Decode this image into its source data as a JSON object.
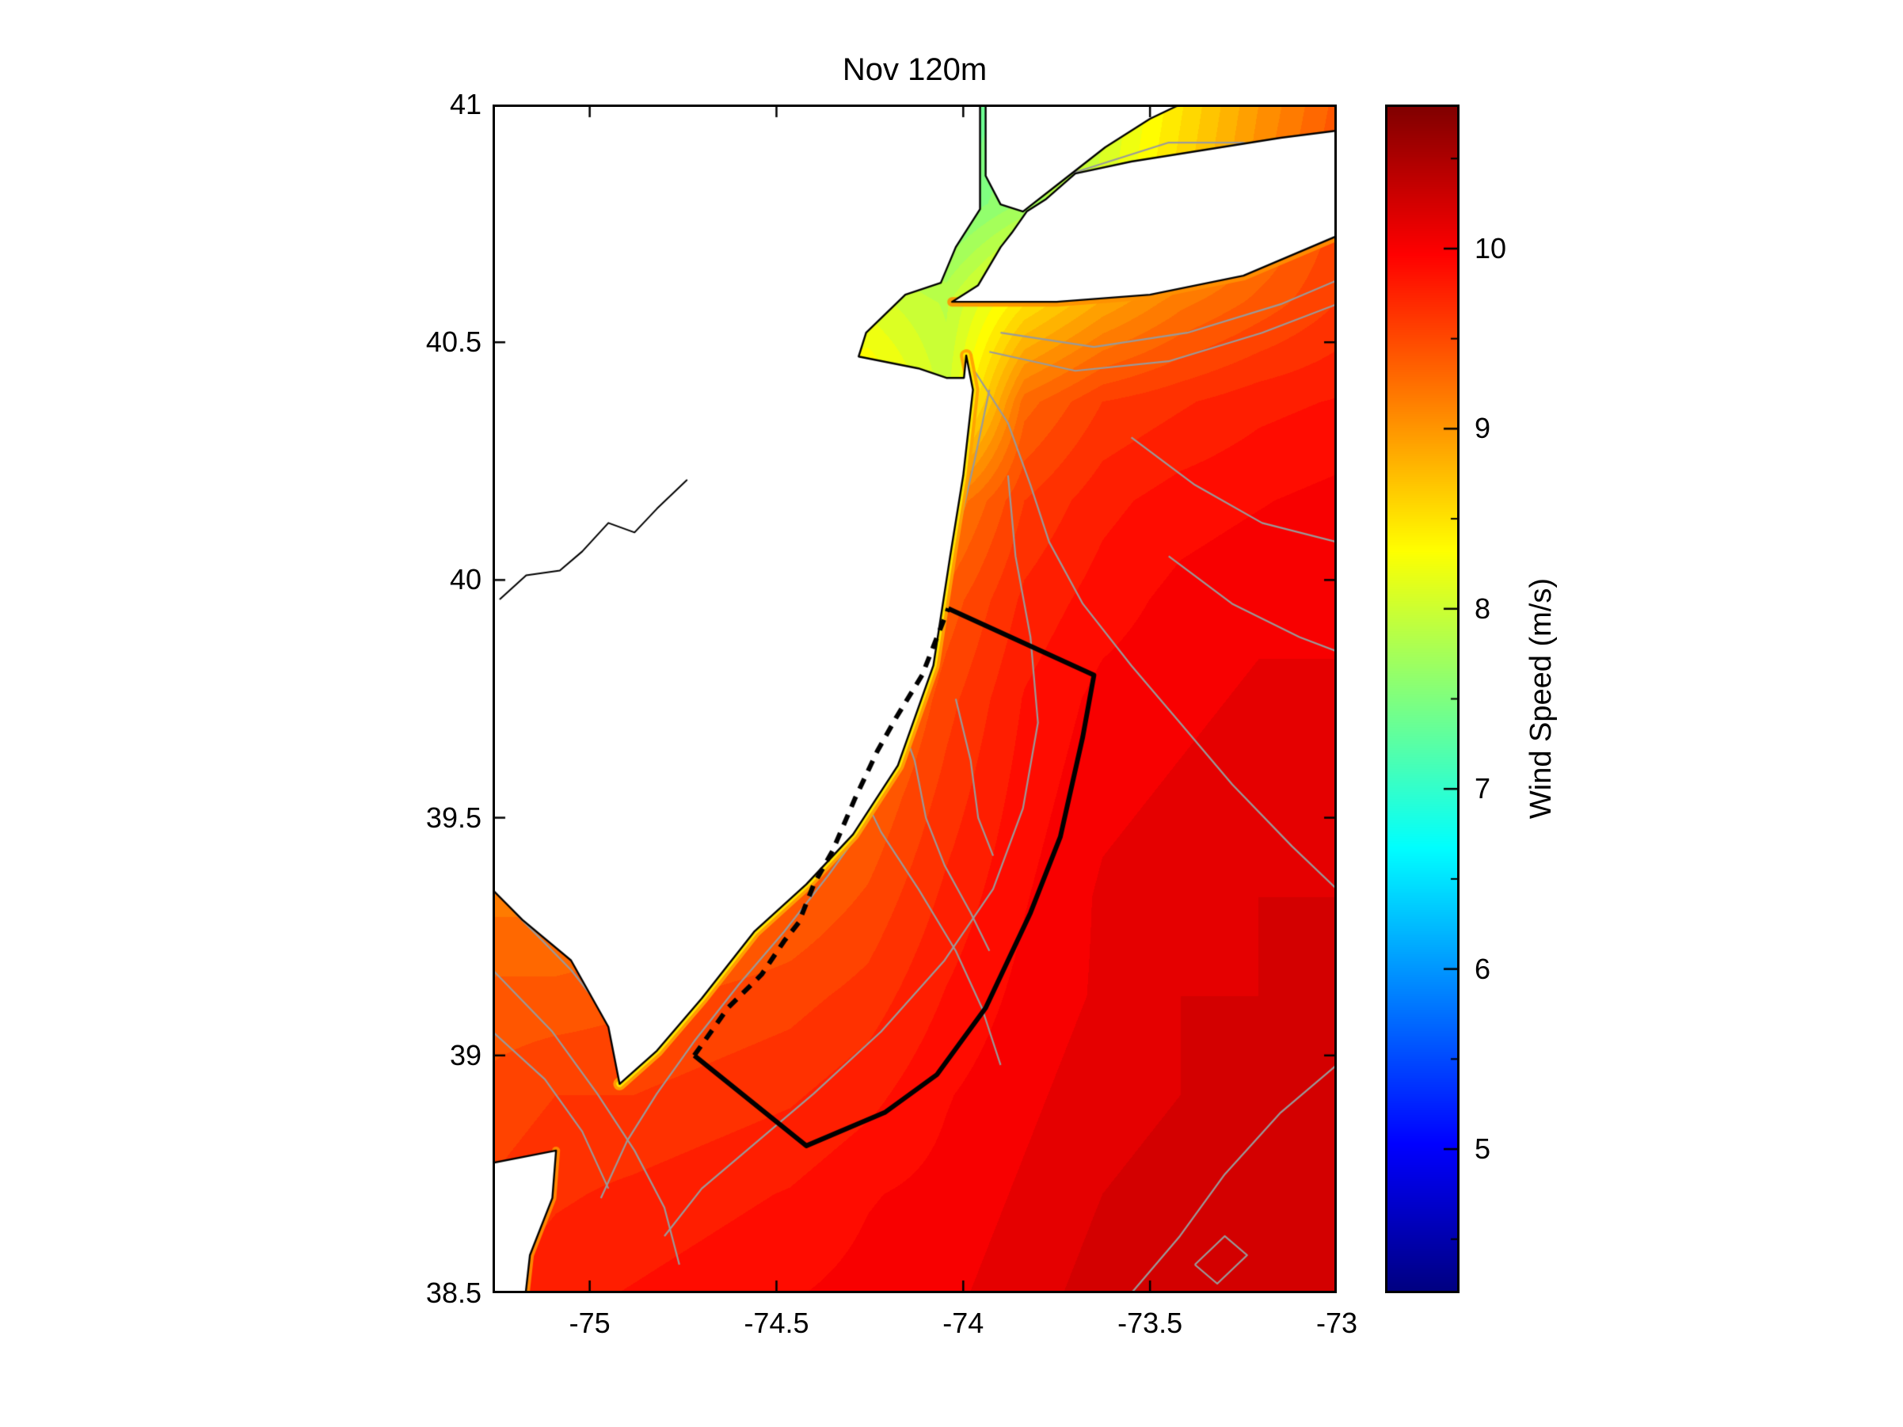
{
  "title": "Nov 120m",
  "colorbar": {
    "label": "Wind Speed (m/s)",
    "ticks": [
      5,
      6,
      7,
      8,
      9,
      10
    ],
    "tick_labels": [
      "5",
      "6",
      "7",
      "8",
      "9",
      "10"
    ],
    "vmin": 4.2,
    "vmax": 10.8
  },
  "axes": {
    "x_ticks": [
      -75,
      -74.5,
      -74,
      -73.5,
      -73
    ],
    "x_tick_labels": [
      "-75",
      "-74.5",
      "-74",
      "-73.5",
      "-73"
    ],
    "y_ticks": [
      38.5,
      39,
      39.5,
      40,
      40.5,
      41
    ],
    "y_tick_labels": [
      "38.5",
      "39",
      "39.5",
      "40",
      "40.5",
      "41"
    ],
    "xlim": [
      -75.26,
      -73.0
    ],
    "ylim": [
      38.5,
      41.0
    ]
  },
  "chart_data": {
    "type": "heatmap",
    "title": "Nov 120m",
    "variable": "Wind Speed (m/s)",
    "colormap": "jet",
    "value_range": [
      4.2,
      10.8
    ],
    "lon_range": [
      -75.26,
      -73.0
    ],
    "lat_range": [
      38.5,
      41.0
    ],
    "legend_position": "right-colorbar",
    "grid": {
      "lons": [
        -75.3,
        -75.09,
        -74.88,
        -74.67,
        -74.46,
        -74.25,
        -74.04,
        -73.83,
        -73.62,
        -73.41,
        -73.2,
        -73.0
      ],
      "lats": [
        41.0,
        40.79,
        40.58,
        40.375,
        40.17,
        39.96,
        39.75,
        39.54,
        39.33,
        39.125,
        38.92,
        38.71,
        38.5
      ],
      "values": [
        [
          7.6,
          7.6,
          7.6,
          7.6,
          7.6,
          7.6,
          7.2,
          7.6,
          8.0,
          8.5,
          9.0,
          9.4
        ],
        [
          7.8,
          7.8,
          7.8,
          7.8,
          7.8,
          7.8,
          7.4,
          7.7,
          8.1,
          8.6,
          9.1,
          9.5
        ],
        [
          8.0,
          8.0,
          8.0,
          8.0,
          8.1,
          8.1,
          7.9,
          8.5,
          8.9,
          9.2,
          9.4,
          9.6
        ],
        [
          8.2,
          8.2,
          8.2,
          8.2,
          8.3,
          8.5,
          8.0,
          9.3,
          9.6,
          9.7,
          9.8,
          9.85
        ],
        [
          8.4,
          8.4,
          8.4,
          8.4,
          8.5,
          8.7,
          9.1,
          9.6,
          9.8,
          9.9,
          9.95,
          10.0
        ],
        [
          8.6,
          8.6,
          8.6,
          8.6,
          8.75,
          9.0,
          9.4,
          9.75,
          9.9,
          10.0,
          10.05,
          10.05
        ],
        [
          8.8,
          8.8,
          8.8,
          8.85,
          8.95,
          9.15,
          9.55,
          9.85,
          10.0,
          10.05,
          10.1,
          10.1
        ],
        [
          9.0,
          9.0,
          9.0,
          9.05,
          9.15,
          9.35,
          9.65,
          9.9,
          10.05,
          10.1,
          10.15,
          10.15
        ],
        [
          9.2,
          9.2,
          9.2,
          9.25,
          9.35,
          9.5,
          9.75,
          9.95,
          10.1,
          10.15,
          10.2,
          10.2
        ],
        [
          9.4,
          9.4,
          9.45,
          9.5,
          9.55,
          9.65,
          9.85,
          10.0,
          10.1,
          10.2,
          10.2,
          10.25
        ],
        [
          9.5,
          9.6,
          9.6,
          9.65,
          9.7,
          9.8,
          9.95,
          10.05,
          10.15,
          10.2,
          10.25,
          10.25
        ],
        [
          9.6,
          9.7,
          9.75,
          9.8,
          9.85,
          9.95,
          10.0,
          10.1,
          10.2,
          10.25,
          10.3,
          10.3
        ],
        [
          9.7,
          9.8,
          9.85,
          9.9,
          9.95,
          10.0,
          10.05,
          10.15,
          10.25,
          10.3,
          10.3,
          10.3
        ]
      ]
    },
    "overlays": {
      "lease_area": {
        "solid": [
          [
            -74.04,
            39.94
          ],
          [
            -73.65,
            39.8
          ],
          [
            -73.68,
            39.67
          ],
          [
            -73.74,
            39.46
          ],
          [
            -73.82,
            39.3
          ],
          [
            -73.94,
            39.1
          ],
          [
            -74.07,
            38.96
          ],
          [
            -74.21,
            38.88
          ],
          [
            -74.42,
            38.81
          ],
          [
            -74.72,
            39.0
          ]
        ],
        "dashed": [
          [
            -74.72,
            39.0
          ],
          [
            -74.63,
            39.1
          ],
          [
            -74.54,
            39.17
          ],
          [
            -74.48,
            39.24
          ],
          [
            -74.44,
            39.28
          ],
          [
            -74.4,
            39.36
          ],
          [
            -74.35,
            39.43
          ],
          [
            -74.29,
            39.54
          ],
          [
            -74.23,
            39.64
          ],
          [
            -74.18,
            39.71
          ],
          [
            -74.11,
            39.8
          ],
          [
            -74.07,
            39.88
          ],
          [
            -74.04,
            39.94
          ]
        ]
      },
      "land": [
        [
          [
            -75.35,
            41.05
          ],
          [
            -73.955,
            41.05
          ],
          [
            -73.955,
            40.78
          ],
          [
            -74.02,
            40.7
          ],
          [
            -74.06,
            40.625
          ],
          [
            -74.155,
            40.6
          ],
          [
            -74.26,
            40.52
          ],
          [
            -74.28,
            40.47
          ],
          [
            -74.12,
            40.445
          ],
          [
            -74.045,
            40.425
          ],
          [
            -73.998,
            40.425
          ],
          [
            -73.992,
            40.472
          ],
          [
            -73.974,
            40.4
          ],
          [
            -74.0,
            40.22
          ],
          [
            -74.035,
            40.05
          ],
          [
            -74.08,
            39.82
          ],
          [
            -74.175,
            39.61
          ],
          [
            -74.295,
            39.465
          ],
          [
            -74.42,
            39.36
          ],
          [
            -74.56,
            39.26
          ],
          [
            -74.7,
            39.12
          ],
          [
            -74.82,
            39.01
          ],
          [
            -74.92,
            38.94
          ],
          [
            -74.95,
            39.06
          ],
          [
            -75.05,
            39.2
          ],
          [
            -75.18,
            39.285
          ],
          [
            -75.3,
            39.38
          ],
          [
            -75.35,
            39.43
          ]
        ],
        [
          [
            -74.03,
            40.585
          ],
          [
            -73.75,
            40.585
          ],
          [
            -73.5,
            40.6
          ],
          [
            -73.25,
            40.64
          ],
          [
            -72.95,
            40.74
          ],
          [
            -72.95,
            40.95
          ],
          [
            -73.15,
            40.93
          ],
          [
            -73.35,
            40.905
          ],
          [
            -73.55,
            40.88
          ],
          [
            -73.7,
            40.855
          ],
          [
            -73.78,
            40.8
          ],
          [
            -73.83,
            40.775
          ],
          [
            -73.87,
            40.73
          ],
          [
            -73.9,
            40.7
          ],
          [
            -73.96,
            40.62
          ]
        ],
        [
          [
            -73.94,
            41.05
          ],
          [
            -73.94,
            40.85
          ],
          [
            -73.9,
            40.79
          ],
          [
            -73.84,
            40.775
          ],
          [
            -73.75,
            40.83
          ],
          [
            -73.62,
            40.91
          ],
          [
            -73.5,
            40.97
          ],
          [
            -73.42,
            41.0
          ],
          [
            -73.36,
            41.05
          ]
        ],
        [
          [
            -75.35,
            38.76
          ],
          [
            -75.09,
            38.8
          ],
          [
            -75.1,
            38.7
          ],
          [
            -75.16,
            38.58
          ],
          [
            -75.18,
            38.44
          ],
          [
            -75.35,
            38.44
          ]
        ]
      ],
      "rivers": [
        [
          [
            -74.74,
            40.21
          ],
          [
            -74.82,
            40.15
          ],
          [
            -74.88,
            40.1
          ],
          [
            -74.95,
            40.12
          ],
          [
            -75.02,
            40.06
          ],
          [
            -75.08,
            40.02
          ],
          [
            -75.17,
            40.01
          ],
          [
            -75.24,
            39.96
          ]
        ]
      ],
      "coastal_fringe": {
        "nj": [
          [
            -73.992,
            40.472
          ],
          [
            -73.974,
            40.4
          ],
          [
            -74.0,
            40.22
          ],
          [
            -74.035,
            40.05
          ],
          [
            -74.08,
            39.82
          ],
          [
            -74.175,
            39.61
          ],
          [
            -74.295,
            39.465
          ],
          [
            -74.42,
            39.36
          ],
          [
            -74.56,
            39.26
          ],
          [
            -74.7,
            39.12
          ],
          [
            -74.82,
            39.01
          ],
          [
            -74.92,
            38.94
          ]
        ],
        "li": [
          [
            -74.03,
            40.585
          ],
          [
            -73.75,
            40.585
          ],
          [
            -73.5,
            40.6
          ],
          [
            -73.25,
            40.64
          ],
          [
            -72.95,
            40.74
          ]
        ],
        "de": [
          [
            -75.09,
            38.8
          ],
          [
            -75.1,
            38.7
          ],
          [
            -75.16,
            38.58
          ],
          [
            -75.18,
            38.44
          ]
        ]
      },
      "bathymetry": [
        [
          [
            -73.93,
            40.4
          ],
          [
            -73.97,
            40.25
          ],
          [
            -74.02,
            40.08
          ],
          [
            -74.07,
            39.92
          ],
          [
            -74.1,
            39.8
          ],
          [
            -74.16,
            39.65
          ],
          [
            -74.25,
            39.5
          ],
          [
            -74.36,
            39.38
          ],
          [
            -74.48,
            39.26
          ],
          [
            -74.6,
            39.15
          ],
          [
            -74.72,
            39.03
          ],
          [
            -74.82,
            38.92
          ],
          [
            -74.9,
            38.82
          ],
          [
            -74.97,
            38.7
          ]
        ],
        [
          [
            -73.97,
            40.44
          ],
          [
            -73.88,
            40.33
          ],
          [
            -73.82,
            40.2
          ],
          [
            -73.77,
            40.08
          ],
          [
            -73.68,
            39.95
          ],
          [
            -73.55,
            39.82
          ],
          [
            -73.42,
            39.7
          ],
          [
            -73.28,
            39.57
          ],
          [
            -73.12,
            39.44
          ],
          [
            -73.0,
            39.35
          ]
        ],
        [
          [
            -73.88,
            40.22
          ],
          [
            -73.86,
            40.05
          ],
          [
            -73.82,
            39.88
          ],
          [
            -73.8,
            39.7
          ],
          [
            -73.84,
            39.52
          ],
          [
            -73.92,
            39.35
          ],
          [
            -74.05,
            39.2
          ],
          [
            -74.22,
            39.05
          ],
          [
            -74.4,
            38.92
          ],
          [
            -74.55,
            38.82
          ],
          [
            -74.7,
            38.72
          ],
          [
            -74.8,
            38.62
          ]
        ],
        [
          [
            -74.18,
            39.73
          ],
          [
            -74.13,
            39.62
          ],
          [
            -74.1,
            39.5
          ],
          [
            -74.05,
            39.4
          ],
          [
            -73.98,
            39.3
          ],
          [
            -73.93,
            39.22
          ]
        ],
        [
          [
            -74.02,
            39.75
          ],
          [
            -73.98,
            39.62
          ],
          [
            -73.96,
            39.5
          ],
          [
            -73.92,
            39.42
          ]
        ],
        [
          [
            -73.93,
            40.48
          ],
          [
            -73.7,
            40.44
          ],
          [
            -73.45,
            40.46
          ],
          [
            -73.2,
            40.52
          ],
          [
            -73.0,
            40.58
          ]
        ],
        [
          [
            -73.9,
            40.52
          ],
          [
            -73.65,
            40.49
          ],
          [
            -73.4,
            40.52
          ],
          [
            -73.15,
            40.58
          ],
          [
            -73.0,
            40.63
          ]
        ],
        [
          [
            -73.55,
            38.5
          ],
          [
            -73.42,
            38.62
          ],
          [
            -73.3,
            38.75
          ],
          [
            -73.15,
            38.88
          ],
          [
            -73.0,
            38.98
          ]
        ],
        [
          [
            -73.38,
            38.56
          ],
          [
            -73.3,
            38.62
          ],
          [
            -73.24,
            38.58
          ],
          [
            -73.32,
            38.52
          ],
          [
            -73.38,
            38.56
          ]
        ],
        [
          [
            -75.26,
            39.18
          ],
          [
            -75.1,
            39.05
          ],
          [
            -74.98,
            38.92
          ],
          [
            -74.88,
            38.8
          ],
          [
            -74.8,
            38.68
          ],
          [
            -74.76,
            38.56
          ]
        ],
        [
          [
            -75.26,
            39.05
          ],
          [
            -75.12,
            38.95
          ],
          [
            -75.02,
            38.84
          ],
          [
            -74.95,
            38.72
          ]
        ],
        [
          [
            -75.2,
            39.3
          ],
          [
            -75.05,
            39.18
          ],
          [
            -74.95,
            39.08
          ]
        ],
        [
          [
            -74.3,
            39.6
          ],
          [
            -74.22,
            39.47
          ],
          [
            -74.12,
            39.35
          ],
          [
            -74.02,
            39.22
          ],
          [
            -73.95,
            39.1
          ],
          [
            -73.9,
            38.98
          ]
        ],
        [
          [
            -73.55,
            40.3
          ],
          [
            -73.38,
            40.2
          ],
          [
            -73.2,
            40.12
          ],
          [
            -73.0,
            40.08
          ]
        ],
        [
          [
            -73.45,
            40.05
          ],
          [
            -73.28,
            39.95
          ],
          [
            -73.1,
            39.88
          ],
          [
            -73.0,
            39.85
          ]
        ],
        [
          [
            -73.85,
            40.82
          ],
          [
            -73.65,
            40.87
          ],
          [
            -73.45,
            40.92
          ],
          [
            -73.25,
            40.92
          ],
          [
            -73.05,
            40.88
          ]
        ]
      ]
    }
  }
}
